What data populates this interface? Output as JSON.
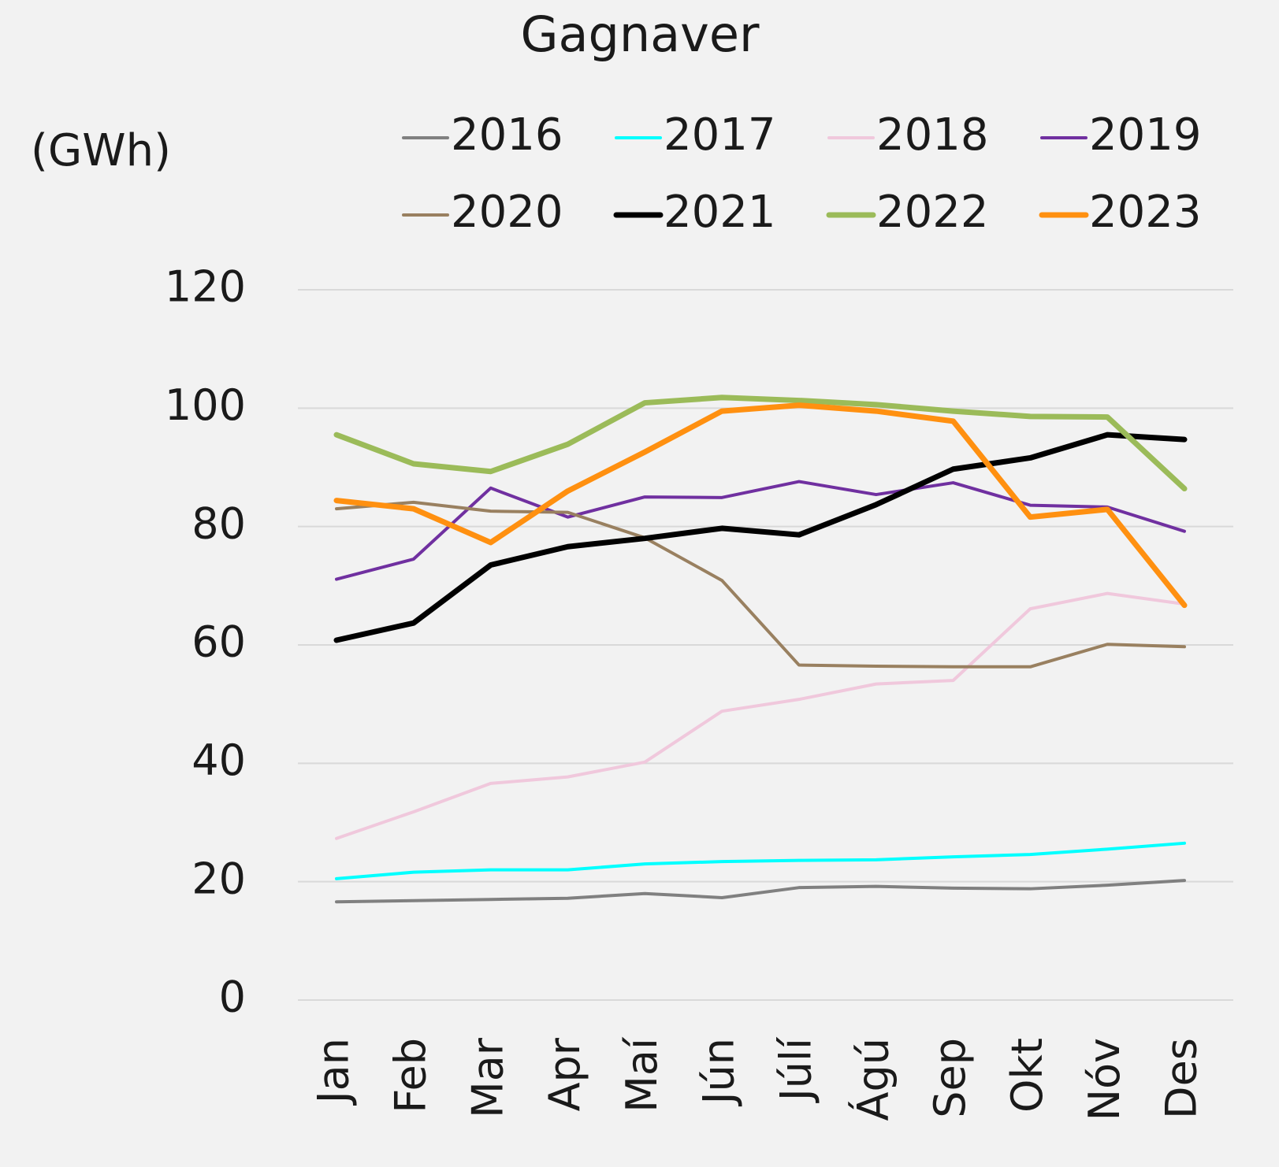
{
  "chart_data": {
    "type": "line",
    "title": "Gagnaver",
    "y_label": "(GWh)",
    "categories": [
      "Jan",
      "Feb",
      "Mar",
      "Apr",
      "Maí",
      "Jún",
      "Júlí",
      "Ágú",
      "Sep",
      "Okt",
      "Nóv",
      "Des"
    ],
    "ylim": [
      0,
      120
    ],
    "yticks": [
      0,
      20,
      40,
      60,
      80,
      100,
      120
    ],
    "grid": true,
    "legend": "top",
    "series": [
      {
        "name": "2016",
        "color": "#808080",
        "values": [
          16.6,
          16.8,
          17.0,
          17.2,
          18.0,
          17.3,
          19.0,
          19.2,
          18.9,
          18.8,
          19.4,
          20.2
        ]
      },
      {
        "name": "2017",
        "color": "#00ffff",
        "values": [
          20.5,
          21.6,
          22.0,
          22.0,
          23.0,
          23.4,
          23.6,
          23.7,
          24.2,
          24.6,
          25.5,
          26.5
        ]
      },
      {
        "name": "2018",
        "color": "#f0c8dc",
        "values": [
          27.3,
          31.8,
          36.6,
          37.7,
          40.2,
          48.8,
          50.8,
          53.4,
          54.0,
          66.1,
          68.7,
          66.9
        ]
      },
      {
        "name": "2019",
        "color": "#7030a0",
        "values": [
          71.1,
          74.5,
          86.5,
          81.6,
          85.0,
          84.9,
          87.6,
          85.4,
          87.4,
          83.6,
          83.3,
          79.2
        ]
      },
      {
        "name": "2020",
        "color": "#998060",
        "values": [
          83.0,
          84.1,
          82.6,
          82.4,
          78.1,
          70.9,
          56.6,
          56.4,
          56.3,
          56.3,
          60.1,
          59.7
        ]
      },
      {
        "name": "2021",
        "color": "#000000",
        "values": [
          60.8,
          63.7,
          73.5,
          76.6,
          78.0,
          79.7,
          78.6,
          83.7,
          89.7,
          91.6,
          95.5,
          94.7
        ]
      },
      {
        "name": "2022",
        "color": "#9bbb59",
        "values": [
          95.5,
          90.6,
          89.3,
          93.9,
          100.9,
          101.8,
          101.3,
          100.6,
          99.5,
          98.6,
          98.5,
          86.4
        ]
      },
      {
        "name": "2023",
        "color": "#ff9010",
        "values": [
          84.4,
          83.0,
          77.3,
          86.0,
          92.6,
          99.5,
          100.5,
          99.5,
          97.8,
          81.6,
          82.9,
          66.7
        ]
      }
    ]
  }
}
